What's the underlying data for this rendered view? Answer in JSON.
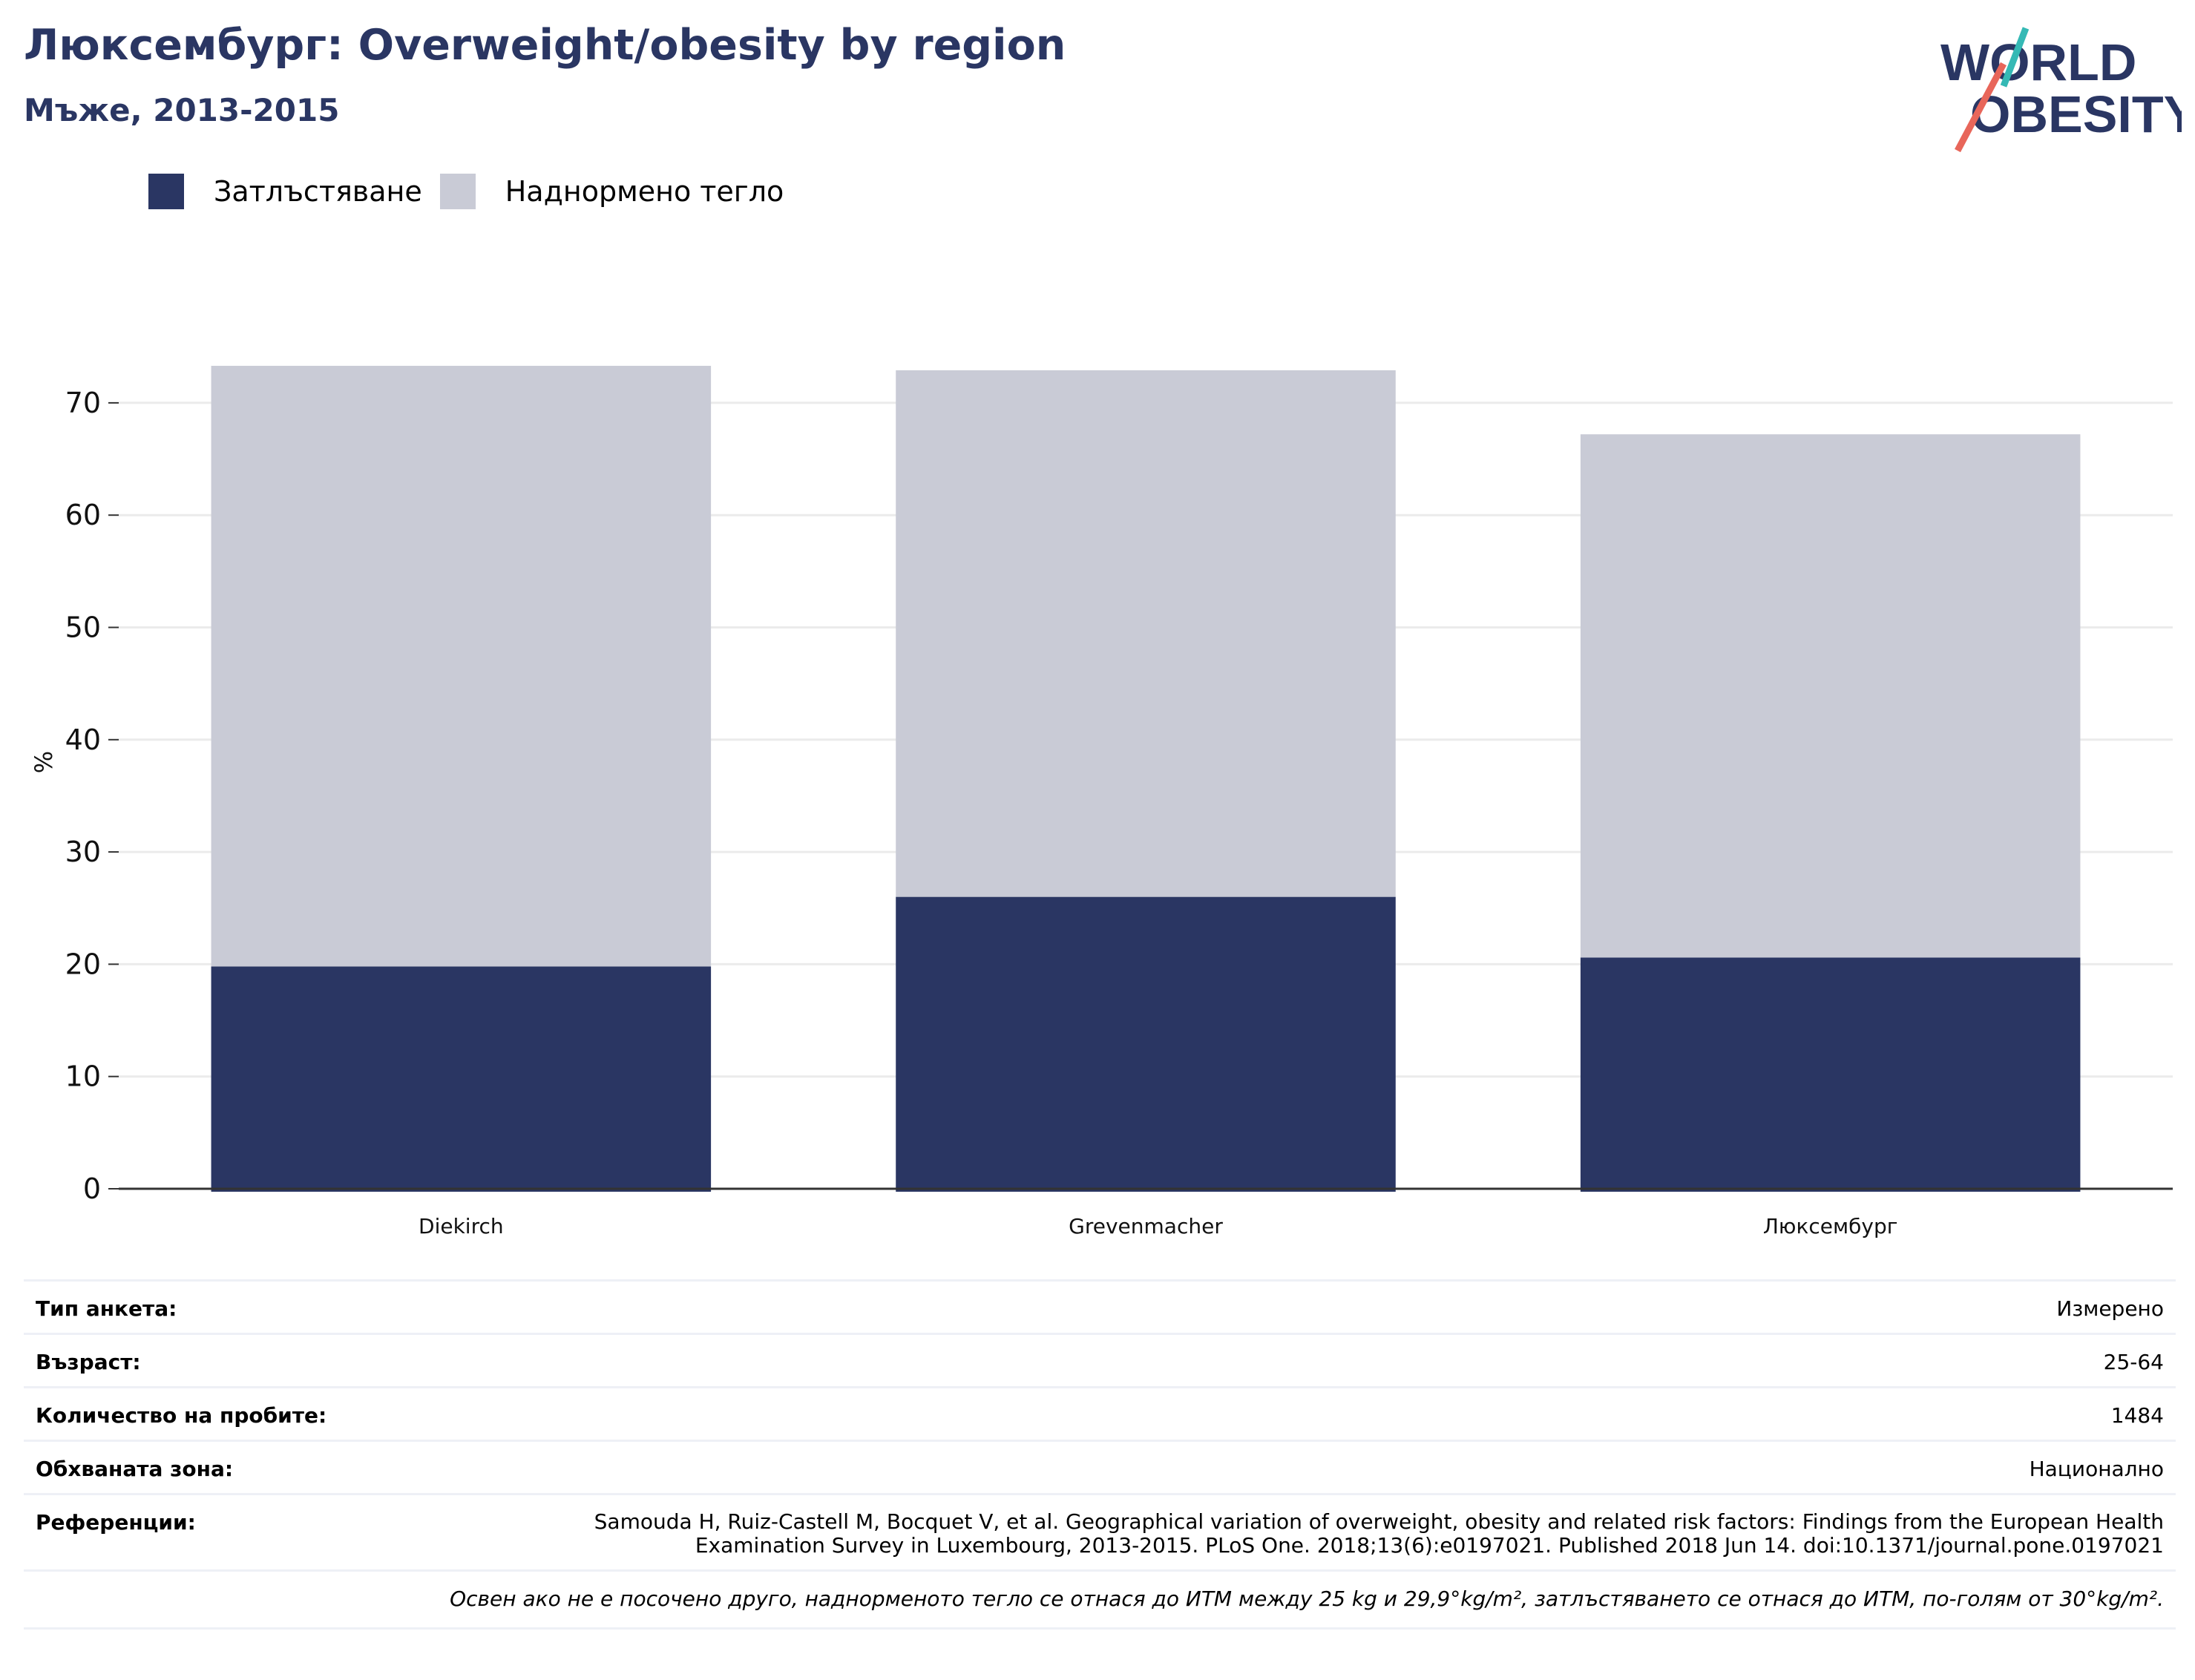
{
  "header": {
    "title": "Люксембург: Overweight/obesity by region",
    "subtitle": "Мъже, 2013-2015"
  },
  "logo": {
    "line1": "WORLD",
    "line2": "OBESITY",
    "colors": {
      "text": "#2a3663",
      "teal": "#35b9b5",
      "coral": "#e8665a"
    }
  },
  "legend": [
    {
      "label": "Затлъстяване",
      "color": "#2a3663"
    },
    {
      "label": "Наднормено тегло",
      "color": "#c9cbd6"
    }
  ],
  "chart_data": {
    "type": "bar",
    "stacked": true,
    "categories": [
      "Diekirch",
      "Grevenmacher",
      "Люксембург"
    ],
    "series": [
      {
        "name": "Затлъстяване",
        "color": "#2a3663",
        "values": [
          19.8,
          26.0,
          20.6
        ]
      },
      {
        "name": "Наднормено тегло",
        "color": "#c9cbd6",
        "values": [
          53.5,
          46.9,
          46.6
        ]
      }
    ],
    "ylabel": "%",
    "ylim": [
      0,
      76
    ],
    "yticks": [
      0,
      10,
      20,
      30,
      40,
      50,
      60,
      70
    ],
    "grid": true,
    "legend_position": "top-left"
  },
  "info": {
    "survey_type_label": "Тип анкета:",
    "survey_type_value": "Измерено",
    "age_label": "Възраст:",
    "age_value": "25-64",
    "sample_label": "Количество на пробите:",
    "sample_value": "1484",
    "area_label": "Обхваната зона:",
    "area_value": "Национално",
    "references_label": "Референции:",
    "references_value": "Samouda H, Ruiz-Castell M, Bocquet V, et al. Geographical variation of overweight, obesity and related risk factors: Findings from the European Health Examination Survey in Luxembourg, 2013-2015. PLoS One. 2018;13(6):e0197021. Published 2018 Jun 14. doi:10.1371/journal.pone.0197021",
    "footnote": "Освен ако не е посочено друго, наднорменото тегло се отнася до ИТМ между 25 kg и 29,9°kg/m², затлъстяването се отнася до ИТМ, по-голям от 30°kg/m²."
  }
}
